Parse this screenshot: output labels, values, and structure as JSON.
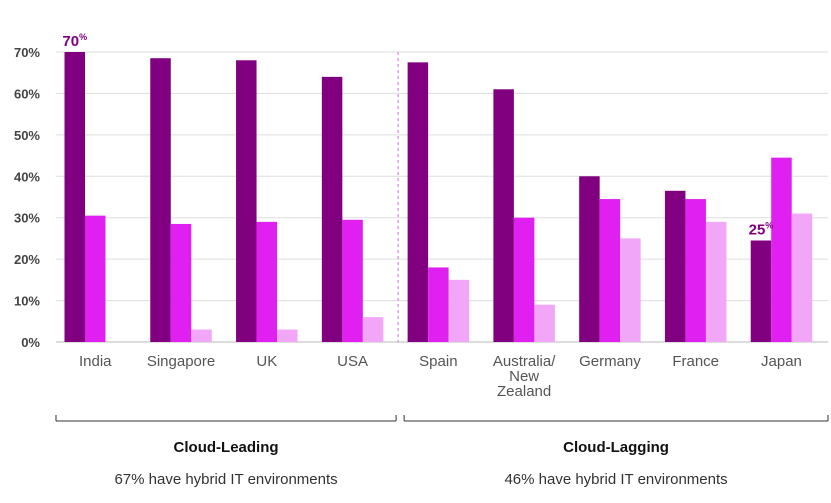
{
  "chart_data": {
    "type": "bar",
    "title": "",
    "xlabel": "",
    "ylabel": "",
    "ylim": [
      0,
      70
    ],
    "yticks": [
      "0%",
      "10%",
      "20%",
      "30%",
      "40%",
      "50%",
      "60%",
      "70%"
    ],
    "grid": true,
    "categories": [
      "India",
      "Singapore",
      "UK",
      "USA",
      "Spain",
      "Australia/ New Zealand",
      "Germany",
      "France",
      "Japan"
    ],
    "category_lines": [
      [
        "India"
      ],
      [
        "Singapore"
      ],
      [
        "UK"
      ],
      [
        "USA"
      ],
      [
        "Spain"
      ],
      [
        "Australia/",
        "New",
        "Zealand"
      ],
      [
        "Germany"
      ],
      [
        "France"
      ],
      [
        "Japan"
      ]
    ],
    "colors": [
      "#800080",
      "#e020f0",
      "#f2a6f7"
    ],
    "series": [
      {
        "values": [
          70,
          68.5,
          68,
          64,
          67.5,
          61,
          40,
          36.5,
          24.5
        ]
      },
      {
        "values": [
          30.5,
          28.5,
          29,
          29.5,
          18,
          30,
          34.5,
          34.5,
          44.5
        ]
      },
      {
        "values": [
          0,
          3,
          3,
          6,
          15,
          9,
          25,
          29,
          31
        ]
      }
    ],
    "annotations": [
      {
        "category": "India",
        "series": 0,
        "text": "70",
        "sup": "%"
      },
      {
        "category": "Japan",
        "series": 0,
        "text": "25",
        "sup": "%"
      }
    ],
    "groups": [
      {
        "label": "Cloud-Leading",
        "subtitle": "67% have hybrid IT environments",
        "start": 0,
        "end": 3
      },
      {
        "label": "Cloud-Lagging",
        "subtitle": "46% have hybrid IT environments",
        "start": 4,
        "end": 8
      }
    ]
  }
}
